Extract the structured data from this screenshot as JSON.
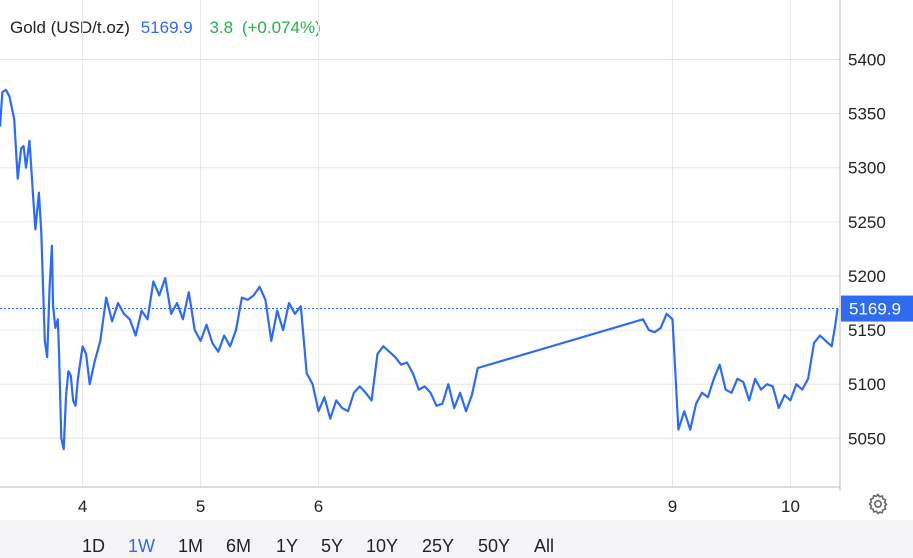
{
  "header": {
    "instrument": "Gold (USD/t.oz)",
    "price": "5169.9",
    "change": "3.8",
    "change_pct": "(+0.074%)"
  },
  "range_buttons": [
    "1D",
    "1W",
    "1M",
    "6M",
    "1Y",
    "5Y",
    "10Y",
    "25Y",
    "50Y",
    "All"
  ],
  "active_range": "1W",
  "colors": {
    "line": "#2f6bf0",
    "up": "#22b14c",
    "grid": "#e6e6e6",
    "last_price_tag": "#2f6bf0"
  },
  "icons": {
    "settings": "gear-icon"
  },
  "chart_data": {
    "type": "line",
    "title": "Gold (USD/t.oz)",
    "xlabel": "",
    "ylabel": "",
    "ylim": [
      5005,
      5455
    ],
    "xlim": [
      3.3,
      10.42
    ],
    "y_ticks": [
      5050,
      5100,
      5150,
      5200,
      5250,
      5300,
      5350,
      5400
    ],
    "x_ticks": [
      4,
      5,
      6,
      9,
      10
    ],
    "x_tick_labels": [
      "4",
      "5",
      "6",
      "9",
      "10"
    ],
    "last_price": 5169.9,
    "last_price_label": "5169.9",
    "grid": true,
    "series": [
      {
        "x": [
          3.3,
          3.32,
          3.35,
          3.38,
          3.42,
          3.45,
          3.48,
          3.5,
          3.52,
          3.55,
          3.58,
          3.6,
          3.63,
          3.65,
          3.68,
          3.7,
          3.72,
          3.74,
          3.75,
          3.77,
          3.79,
          3.8,
          3.82,
          3.84,
          3.86,
          3.88,
          3.9,
          3.92,
          3.94,
          3.96,
          4.0,
          4.03,
          4.06,
          4.1,
          4.15,
          4.2,
          4.25,
          4.3,
          4.35,
          4.4,
          4.45,
          4.5,
          4.55,
          4.6,
          4.65,
          4.7,
          4.75,
          4.8,
          4.85,
          4.9,
          4.95,
          5.0,
          5.05,
          5.1,
          5.15,
          5.2,
          5.25,
          5.3,
          5.35,
          5.4,
          5.45,
          5.5,
          5.55,
          5.6,
          5.65,
          5.7,
          5.75,
          5.8,
          5.85,
          5.9,
          5.95,
          6.0,
          6.05,
          6.1,
          6.15,
          6.2,
          6.25,
          6.3,
          6.35,
          6.4,
          6.45,
          6.5,
          6.55,
          6.6,
          6.65,
          6.7,
          6.75,
          6.8,
          6.85,
          6.9,
          6.95,
          7.0,
          7.05,
          7.1,
          7.15,
          7.2,
          7.25,
          7.3,
          7.35,
          8.75,
          8.8,
          8.85,
          8.9,
          8.95,
          9.0,
          9.05,
          9.1,
          9.15,
          9.2,
          9.25,
          9.3,
          9.35,
          9.4,
          9.45,
          9.5,
          9.55,
          9.6,
          9.65,
          9.7,
          9.75,
          9.8,
          9.85,
          9.9,
          9.95,
          10.0,
          10.05,
          10.1,
          10.15,
          10.2,
          10.25,
          10.3,
          10.35,
          10.38,
          10.4
        ],
        "y": [
          5338,
          5370,
          5372,
          5366,
          5345,
          5290,
          5318,
          5320,
          5300,
          5325,
          5275,
          5243,
          5277,
          5240,
          5140,
          5125,
          5190,
          5228,
          5172,
          5152,
          5160,
          5130,
          5050,
          5040,
          5090,
          5112,
          5108,
          5085,
          5080,
          5105,
          5135,
          5128,
          5100,
          5120,
          5140,
          5180,
          5158,
          5175,
          5165,
          5160,
          5145,
          5168,
          5160,
          5195,
          5182,
          5198,
          5165,
          5175,
          5160,
          5185,
          5150,
          5140,
          5155,
          5138,
          5130,
          5145,
          5135,
          5150,
          5180,
          5178,
          5182,
          5190,
          5178,
          5140,
          5168,
          5150,
          5175,
          5165,
          5172,
          5110,
          5100,
          5075,
          5088,
          5068,
          5085,
          5078,
          5075,
          5092,
          5098,
          5092,
          5085,
          5128,
          5135,
          5130,
          5125,
          5118,
          5120,
          5110,
          5095,
          5098,
          5092,
          5080,
          5082,
          5100,
          5078,
          5092,
          5075,
          5090,
          5115,
          5160,
          5150,
          5148,
          5152,
          5165,
          5160,
          5058,
          5075,
          5058,
          5082,
          5092,
          5088,
          5105,
          5118,
          5095,
          5092,
          5105,
          5102,
          5085,
          5105,
          5095,
          5100,
          5098,
          5078,
          5090,
          5085,
          5100,
          5095,
          5105,
          5138,
          5145,
          5140,
          5135,
          5155,
          5169.9
        ]
      }
    ]
  }
}
